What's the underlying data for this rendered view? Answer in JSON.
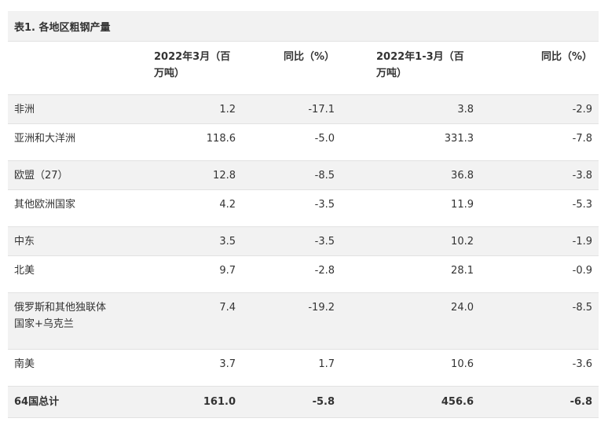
{
  "table": {
    "title": "表1. 各地区粗钢产量",
    "headers": [
      "",
      "2022年3月（百万吨）",
      "同比（%）",
      "2022年1-3月（百万吨）",
      "同比（%）"
    ],
    "rows": [
      {
        "region": "非洲",
        "mar": "1.2",
        "mar_yoy": "-17.1",
        "ytd": "3.8",
        "ytd_yoy": "-2.9"
      },
      {
        "region": "亚洲和大洋洲",
        "mar": "118.6",
        "mar_yoy": "-5.0",
        "ytd": "331.3",
        "ytd_yoy": "-7.8"
      },
      {
        "region": "欧盟（27）",
        "mar": "12.8",
        "mar_yoy": "-8.5",
        "ytd": "36.8",
        "ytd_yoy": "-3.8"
      },
      {
        "region": "其他欧洲国家",
        "mar": "4.2",
        "mar_yoy": "-3.5",
        "ytd": "11.9",
        "ytd_yoy": "-5.3"
      },
      {
        "region": "中东",
        "mar": "3.5",
        "mar_yoy": "-3.5",
        "ytd": "10.2",
        "ytd_yoy": "-1.9"
      },
      {
        "region": "北美",
        "mar": "9.7",
        "mar_yoy": "-2.8",
        "ytd": "28.1",
        "ytd_yoy": "-0.9"
      },
      {
        "region": "俄罗斯和其他独联体国家+乌克兰",
        "mar": "7.4",
        "mar_yoy": "-19.2",
        "ytd": "24.0",
        "ytd_yoy": "-8.5"
      },
      {
        "region": "南美",
        "mar": "3.7",
        "mar_yoy": "1.7",
        "ytd": "10.6",
        "ytd_yoy": "-3.6"
      },
      {
        "region": "64国总计",
        "mar": "161.0",
        "mar_yoy": "-5.8",
        "ytd": "456.6",
        "ytd_yoy": "-6.8"
      }
    ]
  }
}
